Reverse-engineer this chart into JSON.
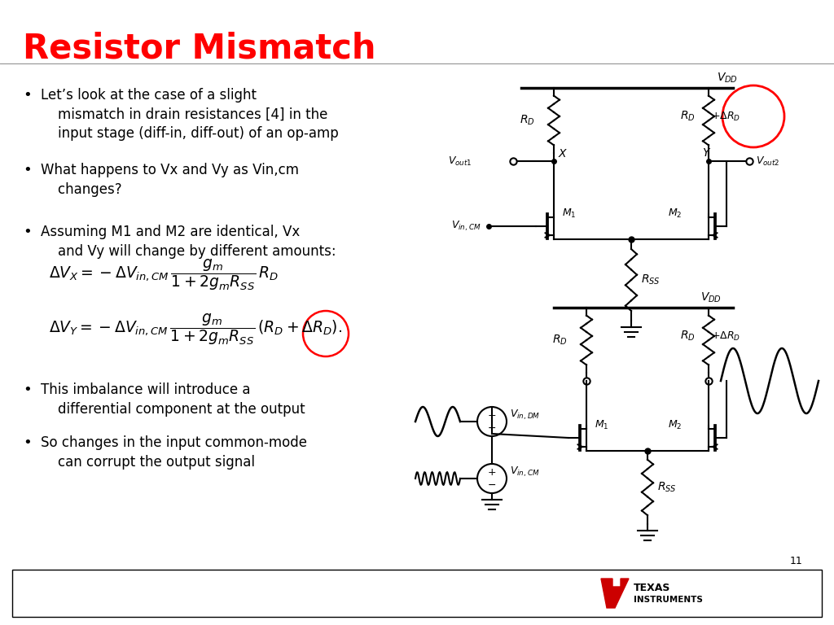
{
  "title": "Resistor Mismatch",
  "title_color": "#FF0000",
  "title_fontsize": 30,
  "background_color": "#FFFFFF",
  "bullet_points": [
    "Let’s look at the case of a slight\nmismatch in drain resistances [4] in the\ninput stage (diff-in, diff-out) of an op-amp",
    "What happens to Vx and Vy as Vin,cm\nchanges?",
    "Assuming M1 and M2 are identical, Vx\nand Vy will change by different amounts:",
    "This imbalance will introduce a\ndifferential component at the output",
    "So changes in the input common-mode\ncan corrupt the output signal"
  ],
  "eq1": "$\\Delta V_X = -\\Delta V_{in,CM}\\,\\dfrac{g_m}{1+2g_m R_{SS}}\\, R_D$",
  "eq2": "$\\Delta V_Y = -\\Delta V_{in,CM}\\,\\dfrac{g_m}{1+2g_m R_{SS}}\\,(R_D + \\Delta R_D).$",
  "slide_number": "11",
  "footer_bg": "#FFFFFF",
  "ti_text_color": "#000000",
  "ti_arrow_color": "#CC0000"
}
